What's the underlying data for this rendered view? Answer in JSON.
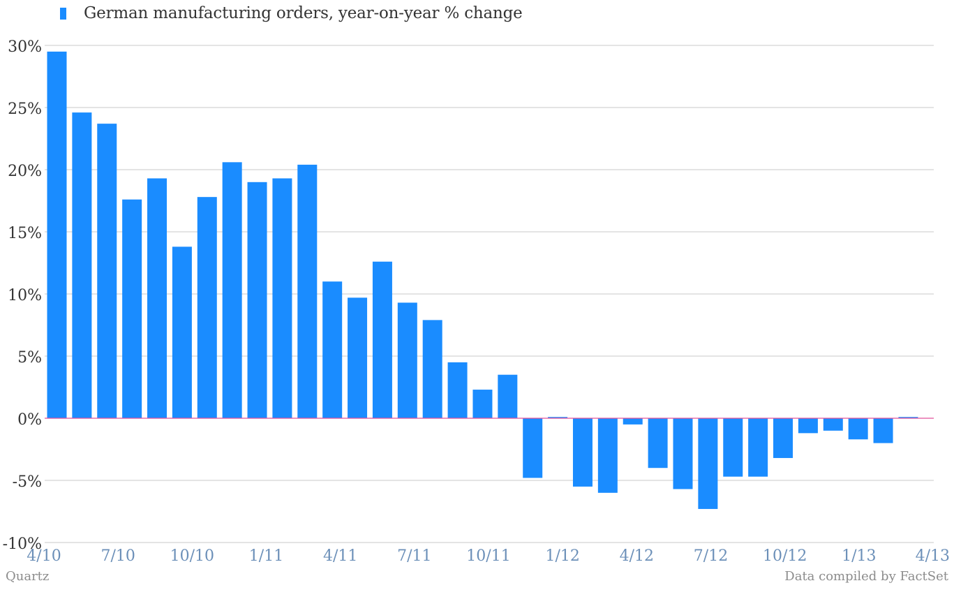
{
  "legend": {
    "label": "German manufacturing orders, year-on-year % change",
    "color": "#1a8cff"
  },
  "footer": {
    "source_left": "Quartz",
    "source_right": "Data compiled by FactSet"
  },
  "colors": {
    "bar": "#1a8cff",
    "zero_line": "#e0509a",
    "grid": "#c8c8c8",
    "y_tick_text": "#333333",
    "x_tick_text": "#6b8fb8"
  },
  "chart_data": {
    "type": "bar",
    "title": "",
    "xlabel": "",
    "ylabel": "",
    "ylim": [
      -10,
      30
    ],
    "y_ticks": [
      30,
      25,
      20,
      15,
      10,
      5,
      0,
      -5,
      -10
    ],
    "y_tick_labels": [
      "30%",
      "25%",
      "20%",
      "15%",
      "10%",
      "5%",
      "0%",
      "-5%",
      "-10%"
    ],
    "x_tick_labels": [
      "4/10",
      "7/10",
      "10/10",
      "1/11",
      "4/11",
      "7/11",
      "10/11",
      "1/12",
      "4/12",
      "7/12",
      "10/12",
      "1/13",
      "4/13"
    ],
    "grid": true,
    "legend_position": "top-left",
    "series": [
      {
        "name": "German manufacturing orders, year-on-year % change",
        "values": [
          29.5,
          24.6,
          23.7,
          17.6,
          19.3,
          13.8,
          17.8,
          20.6,
          19.0,
          19.3,
          20.4,
          11.0,
          9.7,
          12.6,
          9.3,
          7.9,
          4.5,
          2.3,
          3.5,
          -4.8,
          0.1,
          -5.5,
          -6.0,
          -0.5,
          -4.0,
          -5.7,
          -7.3,
          -4.7,
          -4.7,
          -3.2,
          -1.2,
          -1.0,
          -1.7,
          -2.0,
          0.1
        ]
      }
    ]
  }
}
